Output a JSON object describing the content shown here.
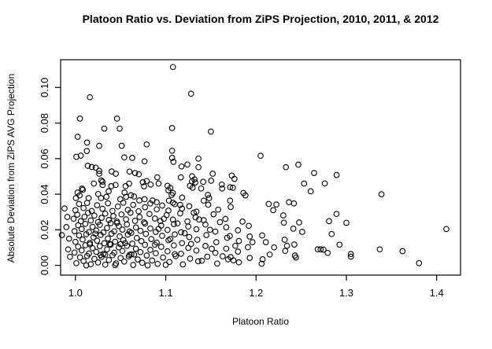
{
  "title": "Platoon Ratio vs. Deviation from ZiPS Projection, 2010, 2011, & 2012",
  "chart_data": {
    "type": "scatter",
    "title": "Platoon Ratio vs. Deviation from ZiPS Projection, 2010, 2011, & 2012",
    "xlabel": "Platoon Ratio",
    "ylabel": "Absolute Deviation from ZiPS AVG Projection",
    "xlim": [
      0.9836,
      1.4264
    ],
    "ylim": [
      -0.0055,
      0.1156
    ],
    "x_ticks": [
      1.0,
      1.1,
      1.2,
      1.3,
      1.4
    ],
    "x_tick_labels": [
      "1.0",
      "1.1",
      "1.2",
      "1.3",
      "1.4"
    ],
    "y_ticks": [
      0.0,
      0.02,
      0.04,
      0.06,
      0.08,
      0.1
    ],
    "y_tick_labels": [
      "0.00",
      "0.02",
      "0.04",
      "0.06",
      "0.08",
      "0.10"
    ],
    "grid": false,
    "legend": null,
    "marker": "open-circle",
    "colors": {
      "point_stroke": "#000000",
      "box": "#000000",
      "background": "#ffffff",
      "text": "#000000"
    },
    "points": [
      [
        1.108,
        0.1115
      ],
      [
        1.128,
        0.0965
      ],
      [
        1.016,
        0.0945
      ],
      [
        1.005,
        0.0825
      ],
      [
        1.046,
        0.0825
      ],
      [
        1.032,
        0.0769
      ],
      [
        1.049,
        0.0769
      ],
      [
        1.107,
        0.0772
      ],
      [
        1.15,
        0.0752
      ],
      [
        1.0024,
        0.0723
      ],
      [
        1.0129,
        0.069
      ],
      [
        1.0263,
        0.0672
      ],
      [
        1.0512,
        0.0672
      ],
      [
        1.0789,
        0.068
      ],
      [
        1.0126,
        0.0643
      ],
      [
        1.001,
        0.061
      ],
      [
        1.0059,
        0.0617
      ],
      [
        1.0541,
        0.0607
      ],
      [
        1.0629,
        0.0604
      ],
      [
        1.0766,
        0.0585
      ],
      [
        1.0137,
        0.056
      ],
      [
        1.0181,
        0.0553
      ],
      [
        1.0225,
        0.0549
      ],
      [
        1.0263,
        0.0531
      ],
      [
        1.0263,
        0.0515
      ],
      [
        1.0401,
        0.0528
      ],
      [
        1.0447,
        0.0515
      ],
      [
        1.0599,
        0.0527
      ],
      [
        1.0661,
        0.0519
      ],
      [
        1.0702,
        0.0512
      ],
      [
        1.0906,
        0.0495
      ],
      [
        1.0287,
        0.0477
      ],
      [
        1.03,
        0.047
      ],
      [
        1.0204,
        0.046
      ],
      [
        1.0301,
        0.0452
      ],
      [
        1.0073,
        0.0431
      ],
      [
        1.0082,
        0.0425
      ],
      [
        1.0397,
        0.0445
      ],
      [
        1.0445,
        0.0452
      ],
      [
        1.0555,
        0.0445
      ],
      [
        1.0594,
        0.046
      ],
      [
        1.0746,
        0.0467
      ],
      [
        1.0789,
        0.0474
      ],
      [
        1.0833,
        0.0454
      ],
      [
        1.076,
        0.0444
      ],
      [
        1.0921,
        0.046
      ],
      [
        1.0024,
        0.0409
      ],
      [
        1.0047,
        0.0393
      ],
      [
        1.0006,
        0.0378
      ],
      [
        1.0146,
        0.0378
      ],
      [
        1.0252,
        0.0401
      ],
      [
        1.0283,
        0.0378
      ],
      [
        1.0368,
        0.0416
      ],
      [
        1.0342,
        0.0385
      ],
      [
        1.0497,
        0.0372
      ],
      [
        1.0544,
        0.0409
      ],
      [
        1.0561,
        0.0385
      ],
      [
        1.0614,
        0.0394
      ],
      [
        1.0649,
        0.0387
      ],
      [
        1.0708,
        0.0365
      ],
      [
        1.0766,
        0.0372
      ],
      [
        1.0854,
        0.0365
      ],
      [
        1.107,
        0.0644
      ],
      [
        1.107,
        0.0604
      ],
      [
        1.1085,
        0.0582
      ],
      [
        1.1362,
        0.06
      ],
      [
        1.1239,
        0.0567
      ],
      [
        1.1175,
        0.0556
      ],
      [
        1.1362,
        0.0552
      ],
      [
        1.1167,
        0.0495
      ],
      [
        1.1292,
        0.0501
      ],
      [
        1.1318,
        0.0483
      ],
      [
        1.1327,
        0.0466
      ],
      [
        1.129,
        0.0472
      ],
      [
        1.1415,
        0.0469
      ],
      [
        1.152,
        0.0515
      ],
      [
        1.1503,
        0.0476
      ],
      [
        1.162,
        0.0454
      ],
      [
        1.1731,
        0.0505
      ],
      [
        1.1761,
        0.0486
      ],
      [
        1.1713,
        0.0439
      ],
      [
        1.1743,
        0.0436
      ],
      [
        1.205,
        0.0616
      ],
      [
        1.102,
        0.0447
      ],
      [
        1.105,
        0.0435
      ],
      [
        1.1029,
        0.0422
      ],
      [
        1.1079,
        0.0407
      ],
      [
        1.1064,
        0.0396
      ],
      [
        1.1269,
        0.0447
      ],
      [
        1.1298,
        0.0436
      ],
      [
        1.1392,
        0.0432
      ],
      [
        1.1625,
        0.0432
      ],
      [
        1.186,
        0.0407
      ],
      [
        1.1883,
        0.0393
      ],
      [
        1.1181,
        0.0381
      ],
      [
        1.1467,
        0.0396
      ],
      [
        1.148,
        0.0378
      ],
      [
        1.1421,
        0.0364
      ],
      [
        1.1713,
        0.0364
      ],
      [
        1.1035,
        0.0364
      ],
      [
        1.1079,
        0.0352
      ],
      [
        1.2331,
        0.0552
      ],
      [
        1.2468,
        0.0566
      ],
      [
        1.2643,
        0.0519
      ],
      [
        1.2892,
        0.0508
      ],
      [
        1.2532,
        0.046
      ],
      [
        1.2761,
        0.0461
      ],
      [
        1.2605,
        0.0416
      ],
      [
        1.3389,
        0.04
      ],
      [
        1.214,
        0.0345
      ],
      [
        1.2225,
        0.0342
      ],
      [
        1.2365,
        0.0355
      ],
      [
        1.242,
        0.0348
      ],
      [
        1.219,
        0.031
      ],
      [
        1.2302,
        0.0281
      ],
      [
        1.2308,
        0.024
      ],
      [
        1.2477,
        0.0241
      ],
      [
        1.2413,
        0.0206
      ],
      [
        1.2511,
        0.0188
      ],
      [
        1.2067,
        0.0168
      ],
      [
        1.2108,
        0.013
      ],
      [
        1.2317,
        0.0144
      ],
      [
        1.2343,
        0.011
      ],
      [
        1.22,
        0.0101
      ],
      [
        1.2424,
        0.0117
      ],
      [
        1.2323,
        0.0081
      ],
      [
        1.2151,
        0.0061
      ],
      [
        1.2073,
        0.0034
      ],
      [
        1.243,
        0.0055
      ],
      [
        1.2442,
        0.0044
      ],
      [
        1.2683,
        0.009
      ],
      [
        1.2715,
        0.009
      ],
      [
        1.2747,
        0.0088
      ],
      [
        1.2793,
        0.007
      ],
      [
        1.2837,
        0.0176
      ],
      [
        1.289,
        0.0289
      ],
      [
        1.2808,
        0.0248
      ],
      [
        1.3,
        0.0239
      ],
      [
        1.2924,
        0.0116
      ],
      [
        1.305,
        0.0064
      ],
      [
        1.305,
        0.0049
      ],
      [
        1.337,
        0.009
      ],
      [
        1.3622,
        0.008
      ],
      [
        1.3805,
        0.0012
      ],
      [
        1.4107,
        0.0204
      ],
      [
        1.2061,
        0.0009
      ],
      [
        1.1718,
        0.0046
      ],
      [
        1.0,
        0.031
      ],
      [
        1.004,
        0.0345
      ],
      [
        1.009,
        0.0322
      ],
      [
        1.013,
        0.0351
      ],
      [
        1.018,
        0.0305
      ],
      [
        1.024,
        0.0338
      ],
      [
        1.03,
        0.0318
      ],
      [
        1.036,
        0.0349
      ],
      [
        1.041,
        0.0306
      ],
      [
        1.047,
        0.0331
      ],
      [
        1.053,
        0.0352
      ],
      [
        1.058,
        0.0312
      ],
      [
        1.064,
        0.034
      ],
      [
        1.07,
        0.0304
      ],
      [
        1.077,
        0.0327
      ],
      [
        1.083,
        0.0348
      ],
      [
        1.09,
        0.0315
      ],
      [
        1.096,
        0.0336
      ],
      [
        1.103,
        0.0308
      ],
      [
        1.11,
        0.0344
      ],
      [
        1.118,
        0.0319
      ],
      [
        1.126,
        0.0332
      ],
      [
        1.134,
        0.0302
      ],
      [
        1.147,
        0.0341
      ],
      [
        1.158,
        0.0313
      ],
      [
        1.172,
        0.0328
      ],
      [
        0.998,
        0.0262
      ],
      [
        1.002,
        0.0285
      ],
      [
        1.006,
        0.0248
      ],
      [
        1.01,
        0.0273
      ],
      [
        1.014,
        0.0295
      ],
      [
        1.017,
        0.0252
      ],
      [
        1.021,
        0.028
      ],
      [
        1.025,
        0.0243
      ],
      [
        1.029,
        0.0267
      ],
      [
        1.033,
        0.0291
      ],
      [
        1.037,
        0.0255
      ],
      [
        1.042,
        0.0277
      ],
      [
        1.046,
        0.0246
      ],
      [
        1.051,
        0.0286
      ],
      [
        1.056,
        0.0259
      ],
      [
        1.061,
        0.0296
      ],
      [
        1.066,
        0.025
      ],
      [
        1.071,
        0.0272
      ],
      [
        1.076,
        0.0242
      ],
      [
        1.082,
        0.0289
      ],
      [
        1.088,
        0.0263
      ],
      [
        1.094,
        0.0249
      ],
      [
        1.101,
        0.0283
      ],
      [
        1.108,
        0.0257
      ],
      [
        1.116,
        0.0292
      ],
      [
        1.124,
        0.0247
      ],
      [
        1.133,
        0.027
      ],
      [
        1.142,
        0.0254
      ],
      [
        1.153,
        0.0287
      ],
      [
        1.166,
        0.0261
      ],
      [
        0.999,
        0.0192
      ],
      [
        1.003,
        0.0225
      ],
      [
        1.007,
        0.0204
      ],
      [
        1.011,
        0.0233
      ],
      [
        1.015,
        0.0187
      ],
      [
        1.019,
        0.0216
      ],
      [
        1.023,
        0.0196
      ],
      [
        1.027,
        0.0228
      ],
      [
        1.031,
        0.0185
      ],
      [
        1.035,
        0.021
      ],
      [
        1.039,
        0.0237
      ],
      [
        1.043,
        0.0191
      ],
      [
        1.048,
        0.0221
      ],
      [
        1.052,
        0.0201
      ],
      [
        1.057,
        0.023
      ],
      [
        1.062,
        0.0183
      ],
      [
        1.067,
        0.0213
      ],
      [
        1.072,
        0.0194
      ],
      [
        1.077,
        0.0235
      ],
      [
        1.083,
        0.0207
      ],
      [
        1.089,
        0.0188
      ],
      [
        1.095,
        0.0224
      ],
      [
        1.102,
        0.0199
      ],
      [
        1.109,
        0.0232
      ],
      [
        1.117,
        0.0186
      ],
      [
        1.125,
        0.0218
      ],
      [
        1.134,
        0.0203
      ],
      [
        1.144,
        0.0229
      ],
      [
        1.155,
        0.019
      ],
      [
        1.167,
        0.0214
      ],
      [
        1.18,
        0.0197
      ],
      [
        1.192,
        0.0222
      ],
      [
        1.06,
        0.019
      ],
      [
        1.046,
        0.0238
      ],
      [
        1.0,
        0.0132
      ],
      [
        1.004,
        0.0168
      ],
      [
        1.008,
        0.0145
      ],
      [
        1.012,
        0.0175
      ],
      [
        1.016,
        0.0126
      ],
      [
        1.02,
        0.0157
      ],
      [
        1.024,
        0.0139
      ],
      [
        1.028,
        0.0171
      ],
      [
        1.032,
        0.0124
      ],
      [
        1.036,
        0.0151
      ],
      [
        1.04,
        0.0178
      ],
      [
        1.044,
        0.0133
      ],
      [
        1.049,
        0.0163
      ],
      [
        1.053,
        0.0142
      ],
      [
        1.058,
        0.0173
      ],
      [
        1.063,
        0.0122
      ],
      [
        1.068,
        0.0154
      ],
      [
        1.073,
        0.0136
      ],
      [
        1.078,
        0.0177
      ],
      [
        1.084,
        0.0148
      ],
      [
        1.09,
        0.0128
      ],
      [
        1.096,
        0.0166
      ],
      [
        1.103,
        0.0141
      ],
      [
        1.11,
        0.0174
      ],
      [
        1.118,
        0.0125
      ],
      [
        1.126,
        0.0159
      ],
      [
        1.135,
        0.0144
      ],
      [
        1.145,
        0.017
      ],
      [
        1.156,
        0.013
      ],
      [
        1.168,
        0.0155
      ],
      [
        1.181,
        0.0137
      ],
      [
        1.193,
        0.0162
      ],
      [
        1.038,
        0.012
      ],
      [
        1.022,
        0.0178
      ],
      [
        1.055,
        0.0125
      ],
      [
        0.999,
        0.0072
      ],
      [
        1.003,
        0.0105
      ],
      [
        1.007,
        0.0084
      ],
      [
        1.011,
        0.0113
      ],
      [
        1.015,
        0.0066
      ],
      [
        1.019,
        0.0096
      ],
      [
        1.023,
        0.0076
      ],
      [
        1.027,
        0.0108
      ],
      [
        1.031,
        0.0064
      ],
      [
        1.035,
        0.009
      ],
      [
        1.039,
        0.0117
      ],
      [
        1.043,
        0.0071
      ],
      [
        1.048,
        0.0101
      ],
      [
        1.052,
        0.0081
      ],
      [
        1.057,
        0.011
      ],
      [
        1.062,
        0.0062
      ],
      [
        1.067,
        0.0093
      ],
      [
        1.072,
        0.0074
      ],
      [
        1.077,
        0.0115
      ],
      [
        1.083,
        0.0087
      ],
      [
        1.089,
        0.0068
      ],
      [
        1.095,
        0.0104
      ],
      [
        1.102,
        0.0079
      ],
      [
        1.109,
        0.0112
      ],
      [
        1.117,
        0.0065
      ],
      [
        1.125,
        0.0098
      ],
      [
        1.134,
        0.0083
      ],
      [
        1.144,
        0.0109
      ],
      [
        1.155,
        0.007
      ],
      [
        1.167,
        0.0094
      ],
      [
        1.18,
        0.0077
      ],
      [
        1.191,
        0.0102
      ],
      [
        1.016,
        0.0118
      ],
      [
        1.033,
        0.006
      ],
      [
        1.05,
        0.0119
      ],
      [
        1.065,
        0.0061
      ],
      [
        1.088,
        0.0116
      ],
      [
        1.11,
        0.0063
      ],
      [
        1.001,
        0.0012
      ],
      [
        1.005,
        0.0045
      ],
      [
        1.009,
        0.0024
      ],
      [
        1.013,
        0.0053
      ],
      [
        1.017,
        0.0006
      ],
      [
        1.021,
        0.0036
      ],
      [
        1.025,
        0.0016
      ],
      [
        1.029,
        0.0048
      ],
      [
        1.033,
        0.0004
      ],
      [
        1.037,
        0.003
      ],
      [
        1.041,
        0.0057
      ],
      [
        1.045,
        0.0011
      ],
      [
        1.05,
        0.0041
      ],
      [
        1.054,
        0.0021
      ],
      [
        1.059,
        0.005
      ],
      [
        1.064,
        0.0002
      ],
      [
        1.069,
        0.0033
      ],
      [
        1.074,
        0.0014
      ],
      [
        1.079,
        0.0055
      ],
      [
        1.085,
        0.0027
      ],
      [
        1.091,
        0.0008
      ],
      [
        1.097,
        0.0044
      ],
      [
        1.104,
        0.0019
      ],
      [
        1.111,
        0.0052
      ],
      [
        1.119,
        0.0005
      ],
      [
        1.127,
        0.0038
      ],
      [
        1.136,
        0.0023
      ],
      [
        1.146,
        0.0049
      ],
      [
        1.157,
        0.001
      ],
      [
        1.169,
        0.0034
      ],
      [
        1.181,
        0.0017
      ],
      [
        1.193,
        0.0042
      ],
      [
        1.012,
        0.0
      ],
      [
        1.028,
        0.0058
      ],
      [
        1.044,
        0.0001
      ],
      [
        1.06,
        0.0059
      ],
      [
        1.08,
        0.0
      ],
      [
        1.1,
        0.0003
      ],
      [
        1.092,
        0.0205
      ],
      [
        1.098,
        0.0262
      ],
      [
        1.105,
        0.0148
      ],
      [
        1.113,
        0.0236
      ],
      [
        1.121,
        0.0181
      ],
      [
        1.128,
        0.012
      ],
      [
        1.137,
        0.0258
      ],
      [
        1.149,
        0.02
      ],
      [
        1.16,
        0.0243
      ],
      [
        1.171,
        0.0165
      ],
      [
        1.177,
        0.011
      ],
      [
        1.185,
        0.0246
      ],
      [
        1.196,
        0.013
      ],
      [
        1.151,
        0.0093
      ],
      [
        1.163,
        0.0051
      ],
      [
        1.14,
        0.0026
      ],
      [
        1.116,
        0.034
      ],
      [
        1.131,
        0.0296
      ],
      [
        1.09,
        0.0355
      ],
      [
        1.175,
        0.0028
      ],
      [
        0.993,
        0.015
      ],
      [
        0.991,
        0.0272
      ],
      [
        0.994,
        0.0048
      ],
      [
        0.99,
        0.0215
      ],
      [
        0.992,
        0.009
      ],
      [
        0.985,
        0.017
      ],
      [
        0.988,
        0.032
      ]
    ]
  }
}
